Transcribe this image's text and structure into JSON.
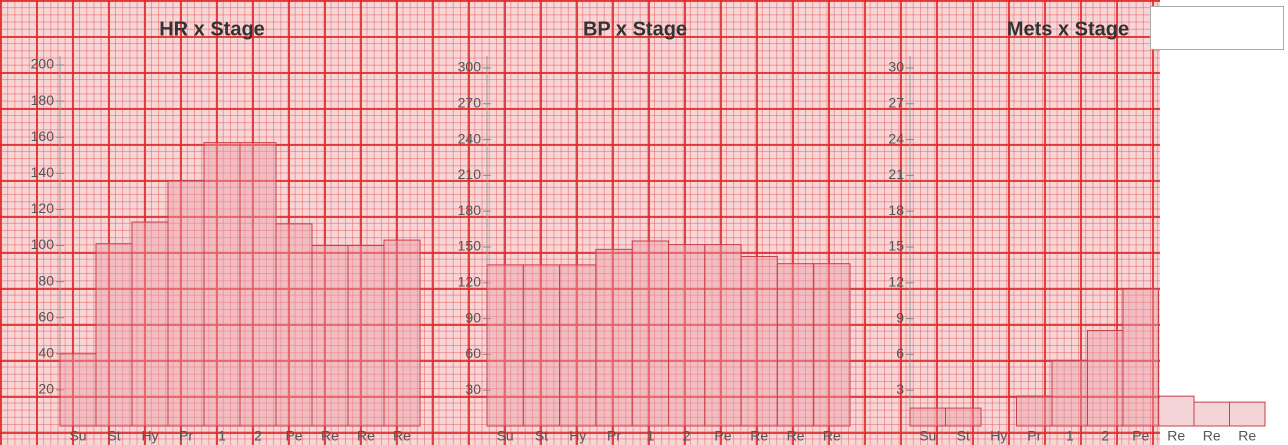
{
  "chart_data": [
    {
      "type": "bar",
      "title": "HR x Stage",
      "categories": [
        "Su",
        "St",
        "Hy",
        "Pr",
        "1",
        "2",
        "Pe",
        "Re",
        "Re",
        "Re"
      ],
      "values": [
        40,
        101,
        113,
        136,
        157,
        157,
        112,
        100,
        100,
        103
      ],
      "color": "#e8a0a8",
      "ylim": [
        0,
        205
      ],
      "yticks": [
        20,
        40,
        60,
        80,
        100,
        120,
        140,
        160,
        180,
        200
      ]
    },
    {
      "type": "bar",
      "title": "BP x Stage",
      "categories": [
        "Su",
        "St",
        "Hy",
        "Pr",
        "1",
        "2",
        "Pe",
        "Re",
        "Re",
        "Re"
      ],
      "values": [
        135,
        135,
        135,
        148,
        155,
        152,
        152,
        142,
        136,
        136
      ],
      "color": "#e8a0a8",
      "ylim": [
        0,
        310
      ],
      "yticks": [
        30,
        60,
        90,
        120,
        150,
        180,
        210,
        240,
        270,
        300
      ]
    },
    {
      "type": "bar",
      "title": "Mets x Stage",
      "categories": [
        "Su",
        "St",
        "Hy",
        "Pr",
        "1",
        "2",
        "Pe",
        "Re",
        "Re",
        "Re"
      ],
      "values": [
        1.5,
        1.5,
        0,
        2.5,
        5.5,
        8,
        11.5,
        2.5,
        2,
        2
      ],
      "color": "#e8a0a8",
      "ylim": [
        0,
        31
      ],
      "yticks": [
        3,
        6,
        9,
        12,
        15,
        18,
        21,
        24,
        27,
        30
      ]
    }
  ]
}
